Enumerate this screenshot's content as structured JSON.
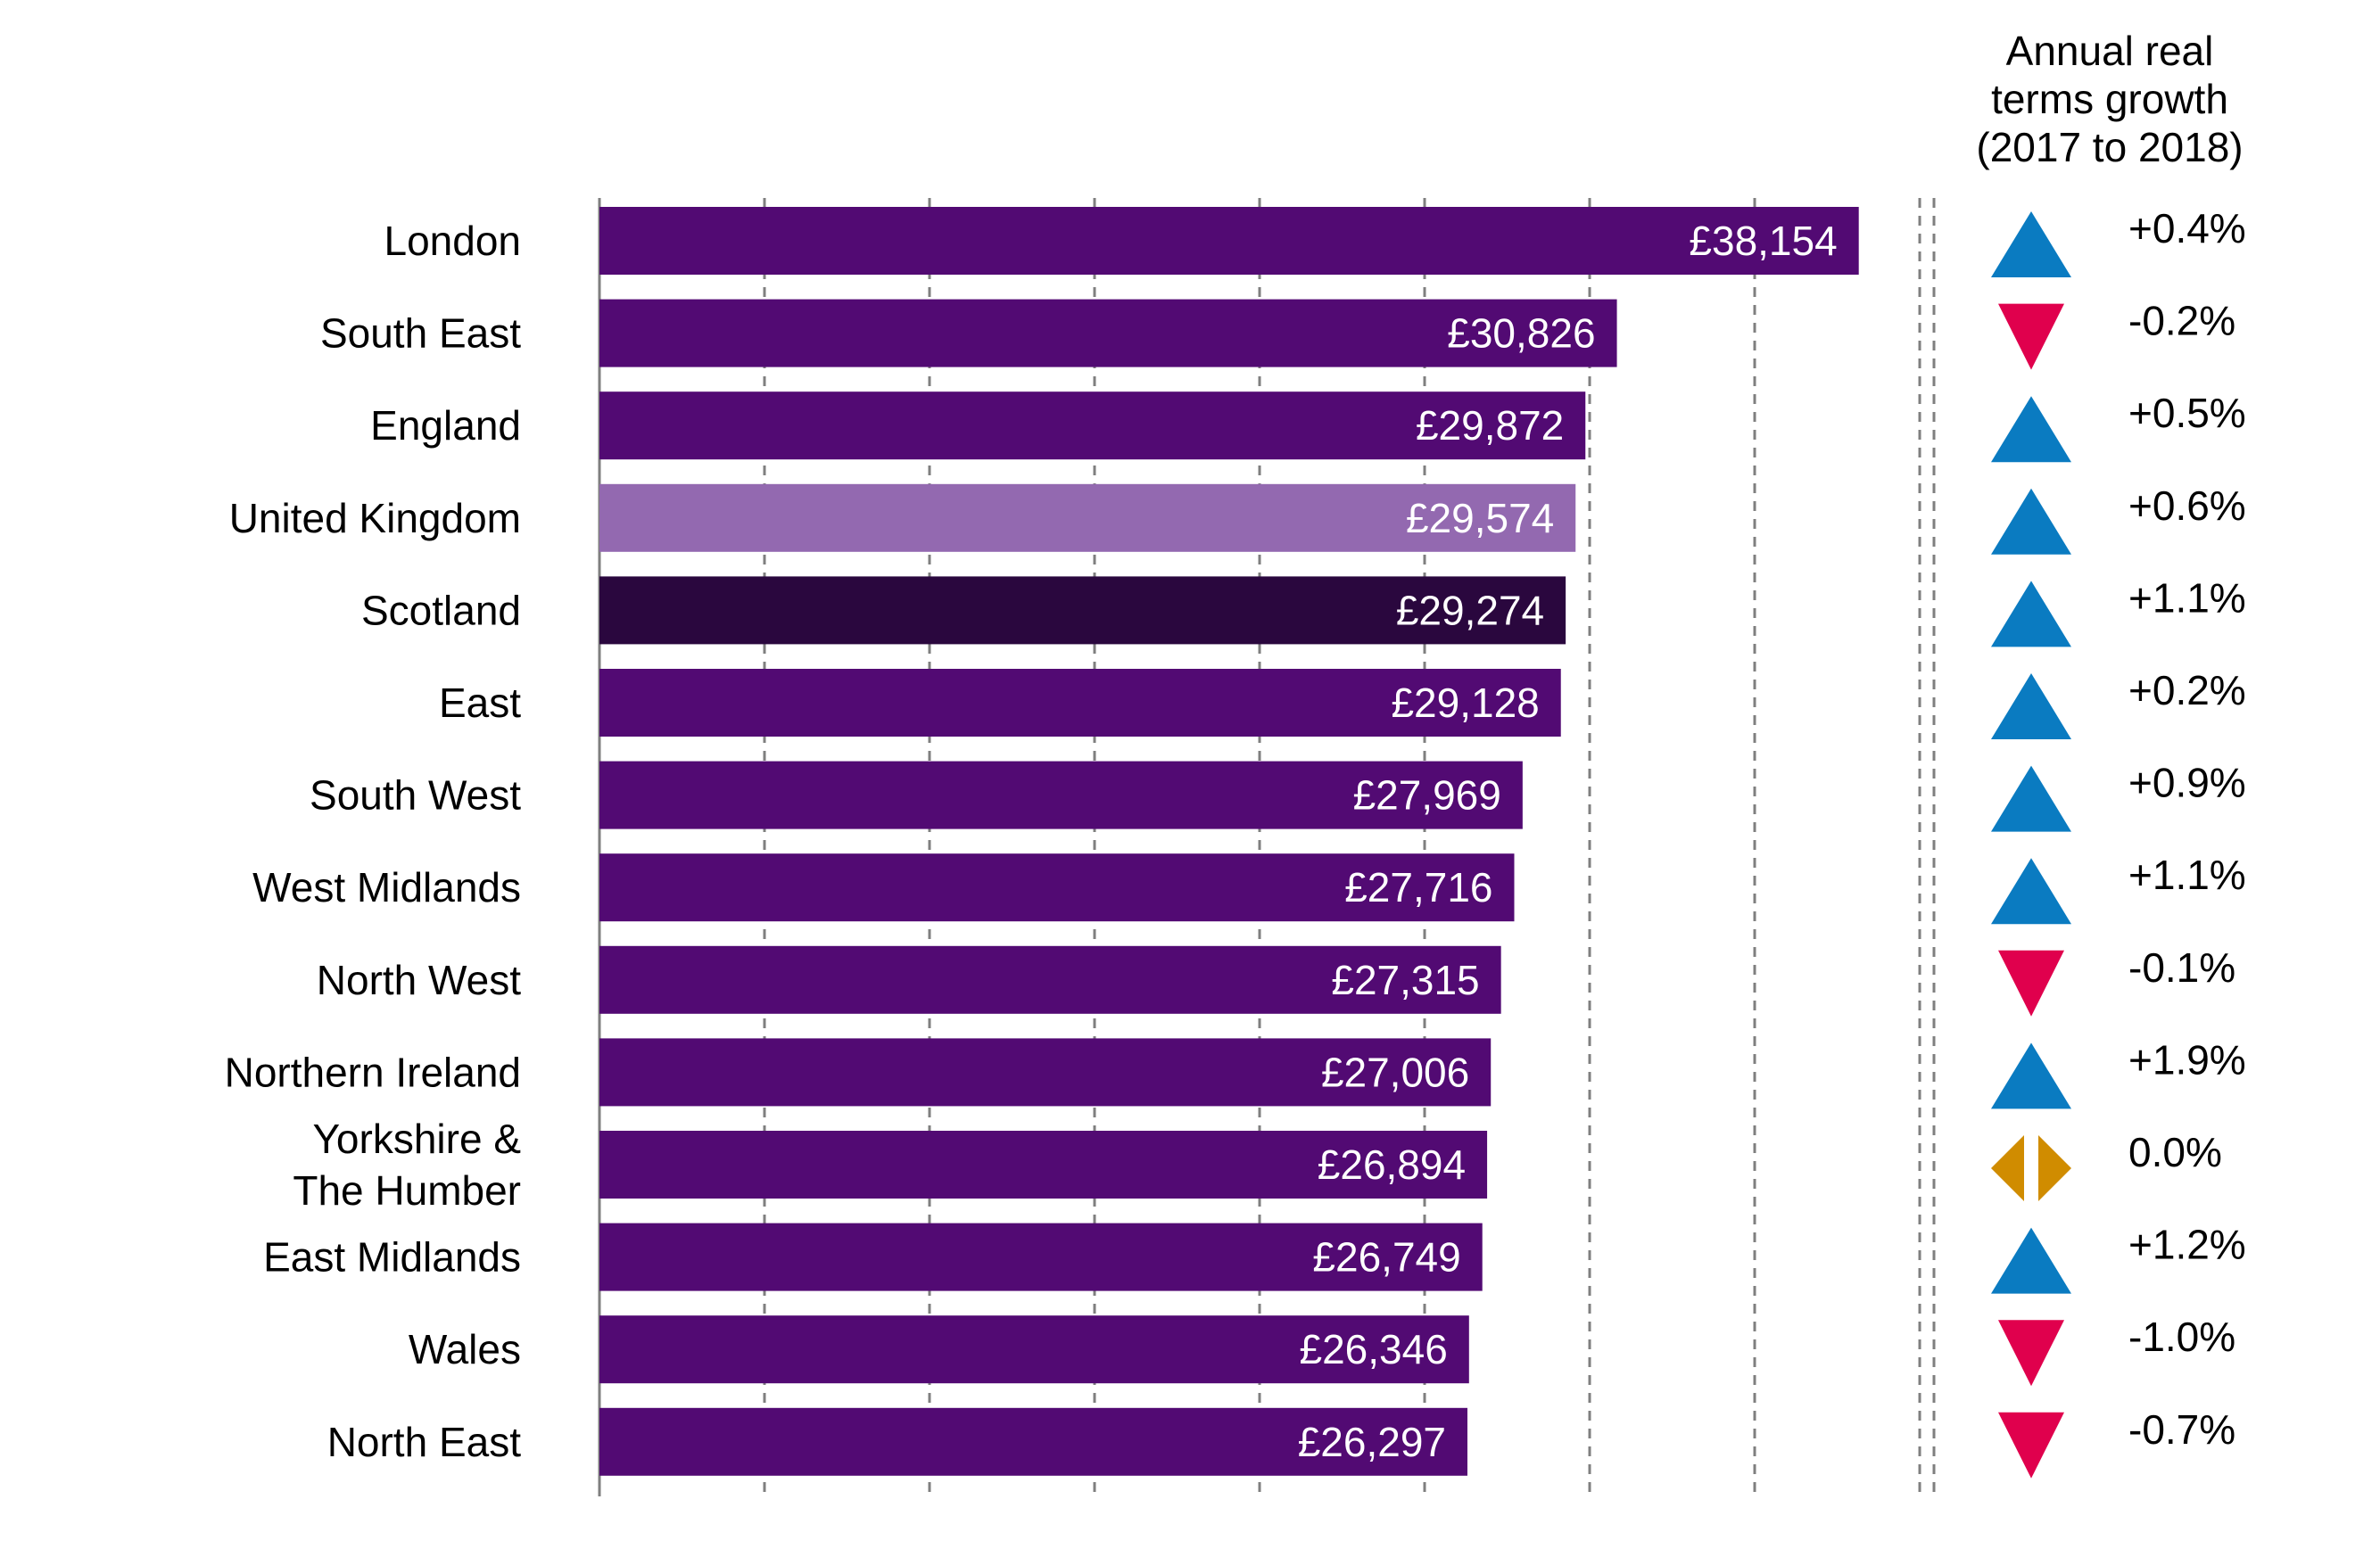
{
  "chart_data": {
    "type": "bar",
    "orientation": "horizontal",
    "categories": [
      "London",
      "South East",
      "England",
      "United Kingdom",
      "Scotland",
      "East",
      "South West",
      "West Midlands",
      "North West",
      "Northern Ireland",
      "Yorkshire & The Humber",
      "East Midlands",
      "Wales",
      "North East"
    ],
    "category_lines": [
      [
        "London"
      ],
      [
        "South East"
      ],
      [
        "England"
      ],
      [
        "United Kingdom"
      ],
      [
        "Scotland"
      ],
      [
        "East"
      ],
      [
        "South West"
      ],
      [
        "West Midlands"
      ],
      [
        "North West"
      ],
      [
        "Northern Ireland"
      ],
      [
        "Yorkshire &",
        "The Humber"
      ],
      [
        "East Midlands"
      ],
      [
        "Wales"
      ],
      [
        "North East"
      ]
    ],
    "values": [
      38154,
      30826,
      29872,
      29574,
      29274,
      29128,
      27969,
      27716,
      27315,
      27006,
      26894,
      26749,
      26346,
      26297
    ],
    "value_labels": [
      "£38,154",
      "£30,826",
      "£29,872",
      "£29,574",
      "£29,274",
      "£29,128",
      "£27,969",
      "£27,716",
      "£27,315",
      "£27,006",
      "£26,894",
      "£26,749",
      "£26,346",
      "£26,297"
    ],
    "xlim": [
      0,
      40000
    ],
    "x_gridlines": [
      0,
      5000,
      10000,
      15000,
      20000,
      25000,
      30000,
      35000,
      40000
    ],
    "bar_colors": [
      "#520a73",
      "#520a73",
      "#520a73",
      "#9369b0",
      "#2a073e",
      "#520a73",
      "#520a73",
      "#520a73",
      "#520a73",
      "#520a73",
      "#520a73",
      "#520a73",
      "#520a73",
      "#520a73"
    ],
    "grid": true,
    "growth": {
      "title_lines": [
        "Annual real",
        "terms growth",
        "(2017 to 2018)"
      ],
      "values": [
        0.4,
        -0.2,
        0.5,
        0.6,
        1.1,
        0.2,
        0.9,
        1.1,
        -0.1,
        1.9,
        0.0,
        1.2,
        -1.0,
        -0.7
      ],
      "labels": [
        "+0.4%",
        "-0.2%",
        "+0.5%",
        "+0.6%",
        "+1.1%",
        "+0.2%",
        "+0.9%",
        "+1.1%",
        "-0.1%",
        "+1.9%",
        "0.0%",
        "+1.2%",
        "-1.0%",
        "-0.7%"
      ],
      "icons": [
        "up-triangle",
        "down-triangle",
        "up-triangle",
        "up-triangle",
        "up-triangle",
        "up-triangle",
        "up-triangle",
        "up-triangle",
        "down-triangle",
        "up-triangle",
        "left-right-arrows",
        "up-triangle",
        "down-triangle",
        "down-triangle"
      ],
      "colors": {
        "up": "#0a7bc1",
        "down": "#e0004d",
        "flat": "#d08c00"
      }
    }
  }
}
